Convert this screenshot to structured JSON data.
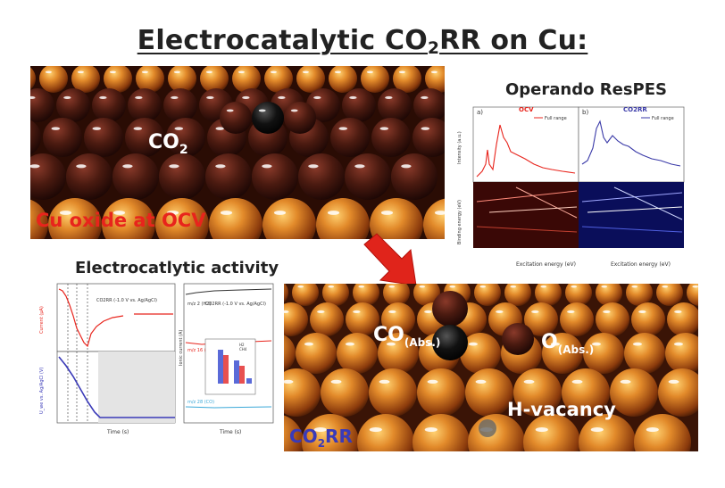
{
  "title": {
    "pre": "Electrocatalytic CO",
    "sub": "2",
    "post": "RR on Cu:"
  },
  "top_scene": {
    "molecule_label": "CO",
    "molecule_sub": "2",
    "caption": "Cu oxide  at OCV"
  },
  "respes": {
    "title": "Operando ResPES",
    "panel_a": {
      "letter": "a)",
      "tag": "OCV",
      "legend": "Full range"
    },
    "panel_b": {
      "letter": "b)",
      "tag": "CO2RR",
      "legend": "Full range"
    },
    "ylabel_top": "Intensity (a.u.)",
    "ylabel_bottom": "Binding energy (eV)",
    "xlabel": "Excitation energy (eV)"
  },
  "activity": {
    "title": "Electrocatlytic activity",
    "left_top_ylabel": "Current (µA)",
    "left_top_note": "CO2RR (-1.0 V vs. Ag/AgCl)",
    "left_bottom_ylabel": "U_we vs. Ag/AgCl (V)",
    "left_xlabel": "Time (s)",
    "right_ylabel": "Ionic current (A)",
    "right_note": "CO2RR (-1.0 V vs. Ag/AgCl)",
    "right_labels": [
      "m/z 2 (H2)",
      "m/z 16 (CH4)",
      "m/z 28 (CO)"
    ],
    "right_xlabel": "Time (s)",
    "inset_legend": [
      "H2",
      "CH4"
    ]
  },
  "bottom_scene": {
    "co_label": "CO",
    "co_sub": "(Abs.)",
    "o_label": "O",
    "o_sub": "(Abs.)",
    "vacancy_label": "H-vacancy",
    "caption_pre": "CO",
    "caption_sub": "2",
    "caption_post": "RR"
  },
  "colors": {
    "copper": "#c9651a",
    "oxide": "#4a1a10",
    "red_accent": "#e8241c",
    "blue_accent": "#3a3aa8",
    "arrow": "#e0241b"
  }
}
